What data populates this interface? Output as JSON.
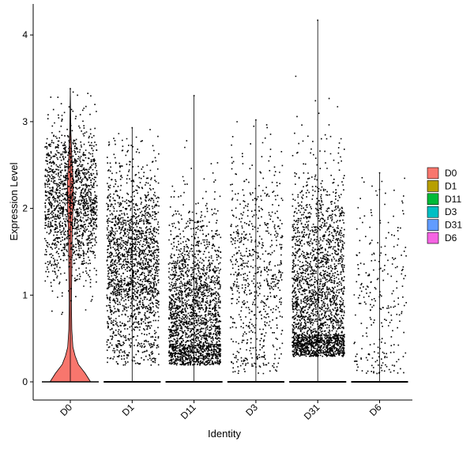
{
  "chart_data": {
    "type": "violin",
    "overlay": "jittered points",
    "xlabel": "Identity",
    "ylabel": "Expression Level",
    "categories": [
      "D0",
      "D1",
      "D11",
      "D3",
      "D31",
      "D6"
    ],
    "ylim": [
      -0.25,
      4.3
    ],
    "yticks": [
      0,
      1,
      2,
      3,
      4
    ],
    "grid": false,
    "legend_position": "right",
    "legend": [
      {
        "label": "D0",
        "color": "#F8766D"
      },
      {
        "label": "D1",
        "color": "#B79F00"
      },
      {
        "label": "D11",
        "color": "#00BA38"
      },
      {
        "label": "D3",
        "color": "#00BFC4"
      },
      {
        "label": "D31",
        "color": "#619CFF"
      },
      {
        "label": "D6",
        "color": "#F564E3"
      }
    ],
    "series": [
      {
        "category": "D0",
        "max": 3.38,
        "n_nonzero": 1500,
        "center": 2.1,
        "spread": 0.45,
        "min_nonzero": 0.3,
        "violin": [
          [
            0.0,
            0.55
          ],
          [
            0.1,
            0.4
          ],
          [
            0.2,
            0.22
          ],
          [
            0.3,
            0.13
          ],
          [
            0.4,
            0.07
          ],
          [
            0.6,
            0.04
          ],
          [
            0.9,
            0.03
          ],
          [
            1.3,
            0.04
          ],
          [
            1.7,
            0.05
          ],
          [
            2.0,
            0.07
          ],
          [
            2.3,
            0.08
          ],
          [
            2.6,
            0.04
          ],
          [
            2.9,
            0.015
          ],
          [
            3.38,
            0.0
          ]
        ]
      },
      {
        "category": "D1",
        "max": 2.93,
        "n_nonzero": 1900,
        "center": 1.35,
        "spread": 0.6,
        "min_nonzero": 0.2
      },
      {
        "category": "D11",
        "max": 3.3,
        "n_nonzero": 2100,
        "center": 0.75,
        "spread": 0.6,
        "min_nonzero": 0.2
      },
      {
        "category": "D3",
        "max": 3.02,
        "n_nonzero": 700,
        "center": 1.2,
        "spread": 0.7,
        "min_nonzero": 0.1
      },
      {
        "category": "D31",
        "max": 4.17,
        "n_nonzero": 2400,
        "center": 0.9,
        "spread": 0.75,
        "min_nonzero": 0.3
      },
      {
        "category": "D6",
        "max": 2.41,
        "n_nonzero": 260,
        "center": 0.9,
        "spread": 0.7,
        "min_nonzero": 0.1
      }
    ]
  }
}
